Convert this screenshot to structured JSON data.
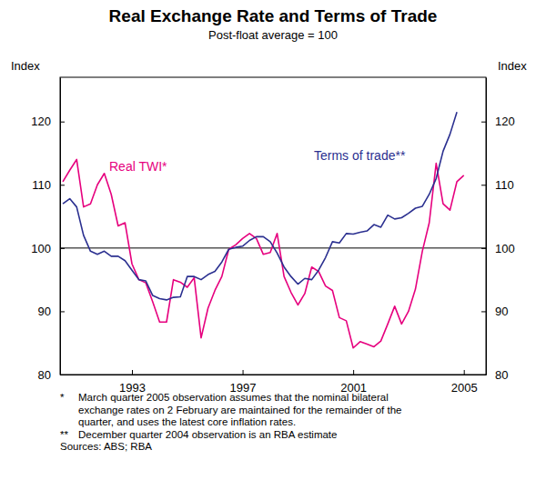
{
  "chart_data": {
    "type": "line",
    "title": "Real Exchange Rate and Terms of Trade",
    "subtitle": "Post-float average = 100",
    "ylabel": "Index",
    "y2label": "Index",
    "x": [
      1990.5,
      1990.75,
      1991,
      1991.25,
      1991.5,
      1991.75,
      1992,
      1992.25,
      1992.5,
      1992.75,
      1993,
      1993.25,
      1993.5,
      1993.75,
      1994,
      1994.25,
      1994.5,
      1994.75,
      1995,
      1995.25,
      1995.5,
      1995.75,
      1996,
      1996.25,
      1996.5,
      1996.75,
      1997,
      1997.25,
      1997.5,
      1997.75,
      1998,
      1998.25,
      1998.5,
      1998.75,
      1999,
      1999.25,
      1999.5,
      1999.75,
      2000,
      2000.25,
      2000.5,
      2000.75,
      2001,
      2001.25,
      2001.5,
      2001.75,
      2002,
      2002.25,
      2002.5,
      2002.75,
      2003,
      2003.25,
      2003.5,
      2003.75,
      2004,
      2004.25,
      2004.5,
      2004.75,
      2005
    ],
    "series": [
      {
        "name": "Real TWI*",
        "color": "#e6007e",
        "values": [
          110.5,
          112.3,
          114,
          106.5,
          107,
          110,
          111.8,
          108.5,
          103.5,
          104,
          97.5,
          95,
          94.5,
          91.5,
          88.3,
          88.3,
          95,
          94.6,
          93.8,
          95.3,
          85.8,
          90.5,
          93.3,
          95.5,
          99.8,
          100.5,
          101.5,
          102.3,
          101.5,
          99,
          99.3,
          102.3,
          95.5,
          93,
          91,
          92.8,
          97,
          96.3,
          94,
          93.3,
          89,
          88.5,
          84.2,
          85.2,
          84.8,
          84.4,
          85.3,
          88,
          90.8,
          88,
          90,
          93.5,
          99.5,
          104,
          113.4,
          107,
          106,
          110.5,
          111.5
        ]
      },
      {
        "name": "Terms of trade**",
        "color": "#2b3090",
        "values": [
          107,
          107.8,
          106.5,
          102,
          99.5,
          99,
          99.5,
          98.7,
          98.7,
          98,
          96.5,
          95,
          94.8,
          92.5,
          92,
          91.8,
          92.2,
          92.3,
          95.5,
          95.5,
          95,
          95.8,
          96.3,
          97.8,
          99.8,
          100.1,
          100.3,
          101.2,
          101.8,
          101.8,
          101,
          99.2,
          97,
          95.5,
          94.3,
          95.2,
          95,
          96.5,
          98.5,
          101,
          100.8,
          102.3,
          102.2,
          102.5,
          102.7,
          103.7,
          103.3,
          105.2,
          104.6,
          104.8,
          105.5,
          106.3,
          106.6,
          108.5,
          111,
          115.3,
          118,
          121.5,
          null
        ]
      }
    ],
    "xlim": [
      1990.4,
      2005.8
    ],
    "xticks": [
      1993,
      1997,
      2001,
      2005
    ],
    "ylim": [
      80,
      127
    ],
    "yticks": [
      80,
      90,
      100,
      110,
      120
    ],
    "y2lim": [
      80,
      127
    ],
    "y2ticks": [
      80,
      90,
      100,
      110,
      120
    ],
    "reference_line": 100,
    "notes": [
      {
        "marker": "*",
        "lines": [
          "March quarter 2005 observation assumes that the nominal bilateral",
          "exchange rates on 2 February are maintained for the remainder of the",
          "quarter, and uses the latest core inflation rates."
        ]
      },
      {
        "marker": "**",
        "lines": [
          "December quarter 2004 observation is an RBA estimate"
        ]
      }
    ],
    "source": "Sources: ABS; RBA"
  }
}
